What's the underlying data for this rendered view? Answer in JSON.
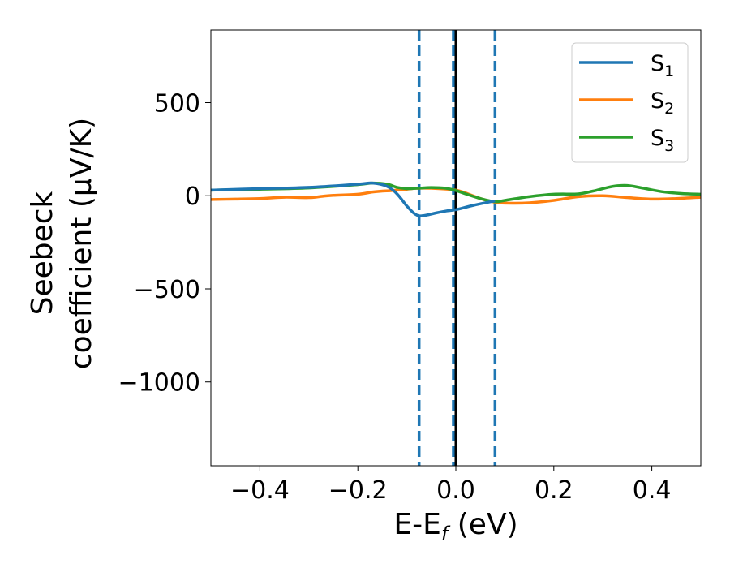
{
  "chart_data": {
    "type": "line",
    "title": "",
    "xlabel_main": "E-E",
    "xlabel_sub": "f",
    "xlabel_unit": " (eV)",
    "ylabel_line1": "Seebeck",
    "ylabel_line2": "coefficient  (μV/K)",
    "xlim": [
      -0.5,
      0.5
    ],
    "ylim": [
      -1450,
      890
    ],
    "xticks": [
      -0.4,
      -0.2,
      0.0,
      0.2,
      0.4
    ],
    "xtick_labels": [
      "−0.4",
      "−0.2",
      "0.0",
      "0.2",
      "0.4"
    ],
    "yticks": [
      500,
      0,
      -500,
      -1000
    ],
    "ytick_labels": [
      "500",
      "0",
      "−500",
      "−1000"
    ],
    "legend_position": "top-right",
    "series": [
      {
        "name": "S",
        "subscript": "1",
        "color": "#1f77b4",
        "x": [
          -0.5,
          -0.4,
          -0.3,
          -0.2,
          -0.17,
          -0.14,
          -0.12,
          -0.1,
          -0.085,
          -0.075,
          -0.06,
          -0.04,
          -0.02,
          0.0,
          0.03,
          0.06,
          0.08
        ],
        "y": [
          30,
          38,
          45,
          62,
          68,
          50,
          10,
          -55,
          -95,
          -108,
          -104,
          -92,
          -82,
          -75,
          -55,
          -38,
          -28
        ]
      },
      {
        "name": "S",
        "subscript": "2",
        "color": "#ff7f0e",
        "x": [
          -0.5,
          -0.45,
          -0.4,
          -0.35,
          -0.3,
          -0.27,
          -0.25,
          -0.2,
          -0.17,
          -0.15,
          -0.13,
          -0.1,
          -0.08,
          -0.05,
          0.0,
          0.03,
          0.05,
          0.08,
          0.1,
          0.15,
          0.2,
          0.25,
          0.3,
          0.35,
          0.4,
          0.45,
          0.5
        ],
        "y": [
          -20,
          -18,
          -15,
          -8,
          -10,
          -2,
          2,
          8,
          20,
          25,
          28,
          35,
          40,
          40,
          30,
          5,
          -15,
          -35,
          -40,
          -38,
          -25,
          -5,
          0,
          -10,
          -18,
          -15,
          -8
        ]
      },
      {
        "name": "S",
        "subscript": "3",
        "color": "#2ca02c",
        "x": [
          -0.5,
          -0.4,
          -0.3,
          -0.2,
          -0.17,
          -0.14,
          -0.12,
          -0.1,
          -0.08,
          -0.05,
          -0.02,
          0.0,
          0.02,
          0.05,
          0.08,
          0.1,
          0.15,
          0.2,
          0.25,
          0.28,
          0.32,
          0.35,
          0.38,
          0.42,
          0.46,
          0.5
        ],
        "y": [
          30,
          35,
          42,
          60,
          68,
          62,
          45,
          38,
          40,
          44,
          40,
          28,
          10,
          -15,
          -32,
          -25,
          -5,
          8,
          10,
          25,
          50,
          55,
          42,
          22,
          12,
          8
        ]
      }
    ],
    "vertical_lines": [
      {
        "x": -0.075,
        "style": "dashed",
        "color": "#1f77b4"
      },
      {
        "x": -0.005,
        "style": "dashed",
        "color": "#1f77b4"
      },
      {
        "x": 0.08,
        "style": "dashed",
        "color": "#1f77b4"
      },
      {
        "x": 0.0,
        "style": "solid",
        "color": "#000000"
      }
    ]
  }
}
